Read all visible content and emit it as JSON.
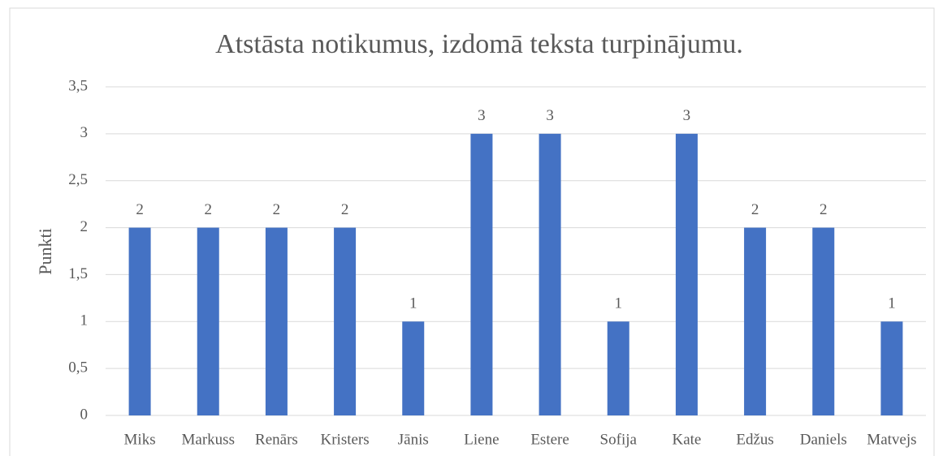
{
  "chart_data": {
    "type": "bar",
    "title": "Atstāsta notikumus, izdomā teksta turpinājumu.",
    "y_label": "Punkti",
    "categories": [
      "Miks",
      "Markuss",
      "Renārs",
      "Kristers",
      "Jānis",
      "Liene",
      "Estere",
      "Sofija",
      "Kate",
      "Edžus",
      "Daniels",
      "Matvejs"
    ],
    "values": [
      2,
      2,
      2,
      2,
      1,
      3,
      3,
      1,
      3,
      2,
      2,
      1
    ],
    "color": "#4472c4",
    "ylim": [
      0,
      3.5
    ],
    "yticks": [
      0,
      {
        "value": 0.5,
        "label": "0,5"
      },
      1,
      {
        "value": 1.5,
        "label": "1,5"
      },
      2,
      {
        "value": 2.5,
        "label": "2,5"
      },
      3,
      {
        "value": 3.5,
        "label": "3,5"
      }
    ],
    "grid": true
  }
}
